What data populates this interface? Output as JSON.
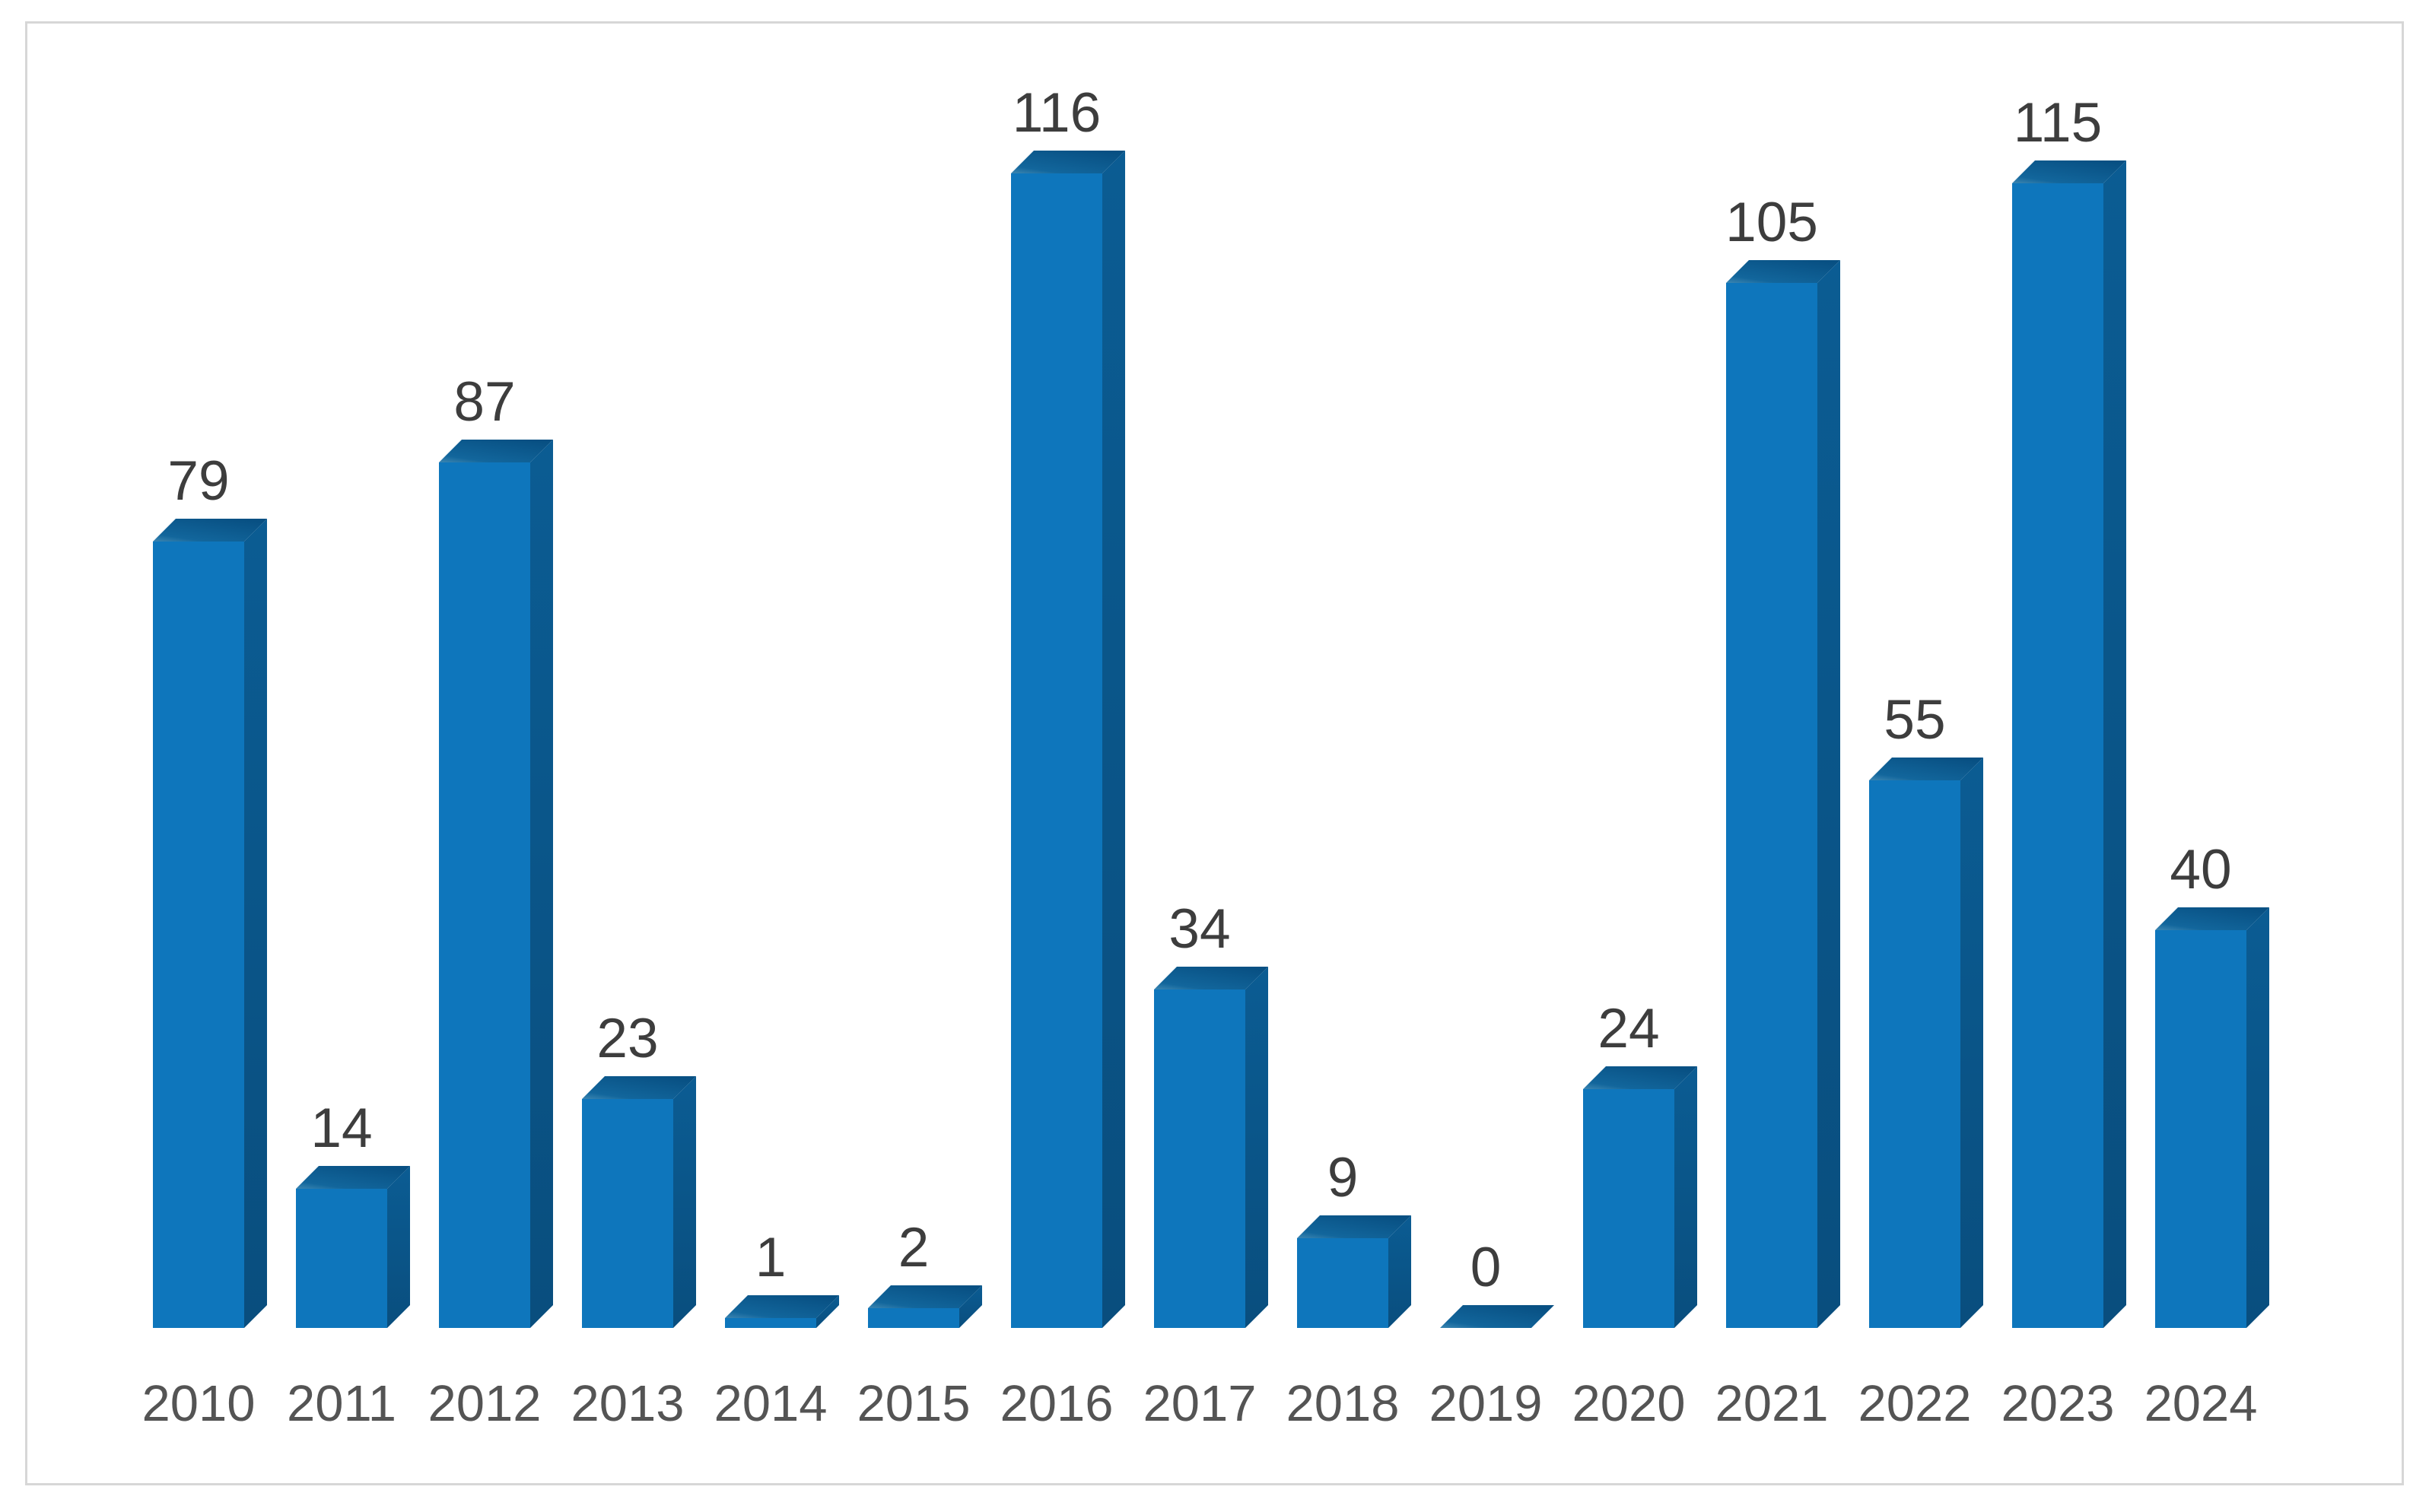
{
  "chart_data": {
    "type": "bar",
    "style": "3d-column",
    "title": "",
    "xlabel": "",
    "ylabel": "",
    "categories": [
      "2010",
      "2011",
      "2012",
      "2013",
      "2014",
      "2015",
      "2016",
      "2017",
      "2018",
      "2019",
      "2020",
      "2021",
      "2022",
      "2023",
      "2024"
    ],
    "values": [
      79,
      14,
      87,
      23,
      1,
      2,
      116,
      34,
      9,
      0,
      24,
      105,
      55,
      115,
      40
    ],
    "ylim": [
      0,
      120
    ],
    "gridlines": false,
    "axes_visible": false,
    "legend": "none",
    "data_labels": "above-bars",
    "colors": {
      "bar_front": "#0e76bc",
      "bar_side_top": "#0b5c93",
      "bar_side_bottom": "#094e7e",
      "bar_top_light": "#3c86b2",
      "bar_top_mid": "#12669c",
      "bar_top_dark": "#085083",
      "value_label": "#3d3d3d",
      "category_label": "#545454",
      "frame_border": "#d7d7d7",
      "background": "#ffffff"
    }
  }
}
